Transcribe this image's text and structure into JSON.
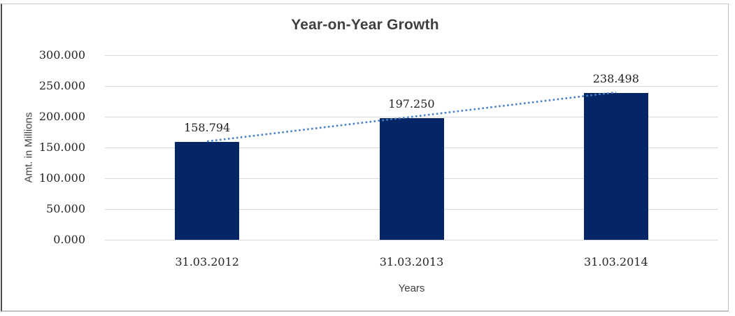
{
  "chart": {
    "title": "Year-on-Year Growth",
    "y_axis": {
      "title": "Amt. in Millions"
    },
    "x_axis": {
      "title": "Years"
    }
  },
  "chart_data": {
    "type": "bar",
    "title": "Year-on-Year Growth",
    "xlabel": "Years",
    "ylabel": "Amt. in Millions",
    "categories": [
      "31.03.2012",
      "31.03.2013",
      "31.03.2014"
    ],
    "values": [
      158.794,
      197.25,
      238.498
    ],
    "value_labels": [
      "158.794",
      "197.250",
      "238.498"
    ],
    "ylim": [
      0,
      300
    ],
    "y_ticks": [
      300,
      250,
      200,
      150,
      100,
      50,
      0
    ],
    "y_tick_labels": [
      "300.000",
      "250.000",
      "200.000",
      "150.000",
      "100.000",
      "50.000",
      "0.000"
    ],
    "grid": "horizontal-on",
    "legend": "none",
    "bar_color": "#042666",
    "gridline_color": "#d9d9d9",
    "trendline": {
      "type": "linear",
      "style": "dotted",
      "color": "#4a82c4"
    }
  }
}
